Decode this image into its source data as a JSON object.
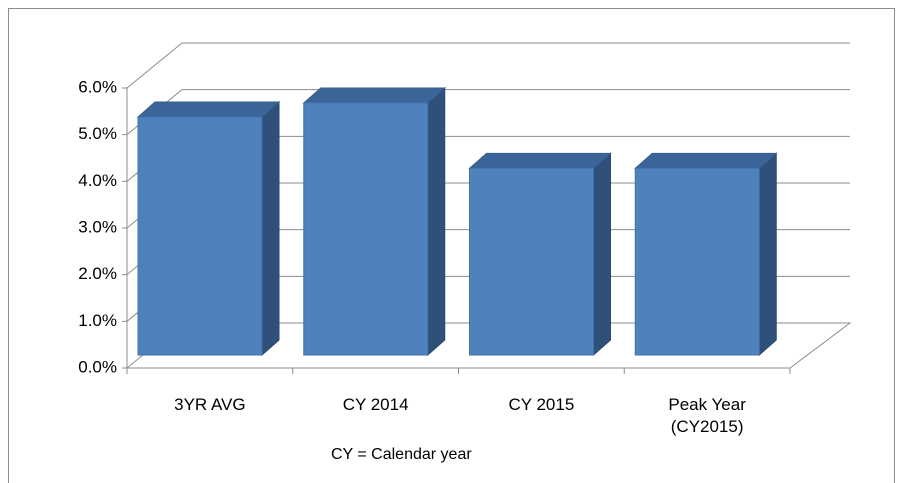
{
  "chart_data": {
    "type": "bar3d",
    "categories": [
      "3YR AVG",
      "CY 2014",
      "CY 2015",
      "Peak Year (CY2015)"
    ],
    "values": [
      5.1,
      5.4,
      4.0,
      4.0
    ],
    "color": "#4f81bd",
    "x_label": "CY = Calendar year",
    "ylim": [
      0,
      6
    ],
    "yticks": [
      {
        "value": 0,
        "label": "0.0%"
      },
      {
        "value": 1,
        "label": "1.0%"
      },
      {
        "value": 2,
        "label": "2.0%"
      },
      {
        "value": 3,
        "label": "3.0%"
      },
      {
        "value": 4,
        "label": "4.0%"
      },
      {
        "value": 5,
        "label": "5.0%"
      },
      {
        "value": 6,
        "label": "6.0%"
      }
    ],
    "grid": true
  }
}
